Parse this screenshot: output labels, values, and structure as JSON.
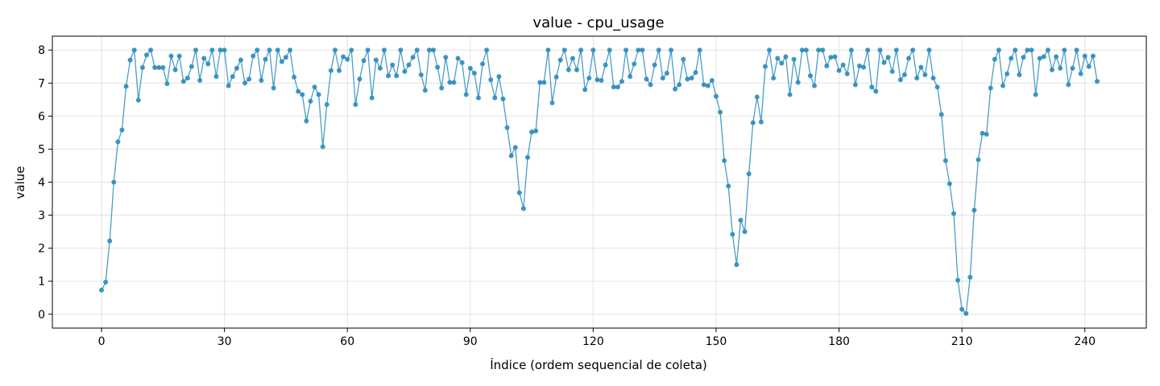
{
  "chart_data": {
    "type": "line",
    "title": "value - cpu_usage",
    "xlabel": "Índice (ordem sequencial de coleta)",
    "ylabel": "value",
    "xlim": [
      -12,
      255
    ],
    "ylim": [
      -0.42,
      8.42
    ],
    "xticks": [
      0,
      30,
      60,
      90,
      120,
      150,
      180,
      210,
      240
    ],
    "yticks": [
      0,
      1,
      2,
      3,
      4,
      5,
      6,
      7,
      8
    ],
    "grid": true,
    "marker": "circle",
    "series": [
      {
        "color": "#2b8cbe",
        "values": [
          0.73,
          0.97,
          2.22,
          4.0,
          5.22,
          5.58,
          6.9,
          7.7,
          8.0,
          6.48,
          7.47,
          7.85,
          8.0,
          7.47,
          7.47,
          7.47,
          6.98,
          7.82,
          7.4,
          7.82,
          7.05,
          7.15,
          7.5,
          8.0,
          7.08,
          7.75,
          7.58,
          8.0,
          7.2,
          8.0,
          8.0,
          6.92,
          7.2,
          7.45,
          7.7,
          7.0,
          7.12,
          7.82,
          8.0,
          7.08,
          7.72,
          8.0,
          6.85,
          8.0,
          7.65,
          7.78,
          8.0,
          7.18,
          6.75,
          6.65,
          5.85,
          6.45,
          6.88,
          6.65,
          5.07,
          6.35,
          7.38,
          8.0,
          7.38,
          7.8,
          7.72,
          8.0,
          6.35,
          7.12,
          7.68,
          8.0,
          6.55,
          7.7,
          7.45,
          8.0,
          7.22,
          7.55,
          7.22,
          8.0,
          7.35,
          7.55,
          7.78,
          8.0,
          7.25,
          6.78,
          8.0,
          8.0,
          7.48,
          6.85,
          7.78,
          7.02,
          7.02,
          7.75,
          7.62,
          6.65,
          7.45,
          7.3,
          6.55,
          7.58,
          8.0,
          7.1,
          6.55,
          7.2,
          6.52,
          5.65,
          4.8,
          5.05,
          3.68,
          3.2,
          4.75,
          5.52,
          5.55,
          7.02,
          7.02,
          8.0,
          6.4,
          7.18,
          7.7,
          8.0,
          7.4,
          7.75,
          7.4,
          8.0,
          6.8,
          7.15,
          8.0,
          7.1,
          7.08,
          7.55,
          8.0,
          6.88,
          6.88,
          7.05,
          8.0,
          7.2,
          7.58,
          8.0,
          8.0,
          7.12,
          6.95,
          7.55,
          8.0,
          7.15,
          7.3,
          8.0,
          6.82,
          6.95,
          7.72,
          7.12,
          7.15,
          7.32,
          8.0,
          6.95,
          6.92,
          7.08,
          6.6,
          6.12,
          4.65,
          3.88,
          2.42,
          1.5,
          2.85,
          2.5,
          4.25,
          5.8,
          6.58,
          5.82,
          7.5,
          8.0,
          7.15,
          7.75,
          7.6,
          7.8,
          6.65,
          7.72,
          7.02,
          8.0,
          8.0,
          7.22,
          6.92,
          8.0,
          8.0,
          7.52,
          7.78,
          7.8,
          7.38,
          7.55,
          7.28,
          8.0,
          6.95,
          7.52,
          7.48,
          8.0,
          6.88,
          6.75,
          8.0,
          7.62,
          7.78,
          7.35,
          8.0,
          7.1,
          7.25,
          7.75,
          8.0,
          7.15,
          7.48,
          7.25,
          8.0,
          7.15,
          6.88,
          6.05,
          4.65,
          3.95,
          3.05,
          1.03,
          0.15,
          0.02,
          1.12,
          3.15,
          4.68,
          5.48,
          5.45,
          6.85,
          7.72,
          8.0,
          6.92,
          7.28,
          7.75,
          8.0,
          7.25,
          7.78,
          8.0,
          8.0,
          6.65,
          7.75,
          7.8,
          8.0,
          7.4,
          7.8,
          7.45,
          8.0,
          6.95,
          7.45,
          8.0,
          7.28,
          7.82,
          7.5,
          7.82,
          7.05
        ]
      }
    ]
  }
}
